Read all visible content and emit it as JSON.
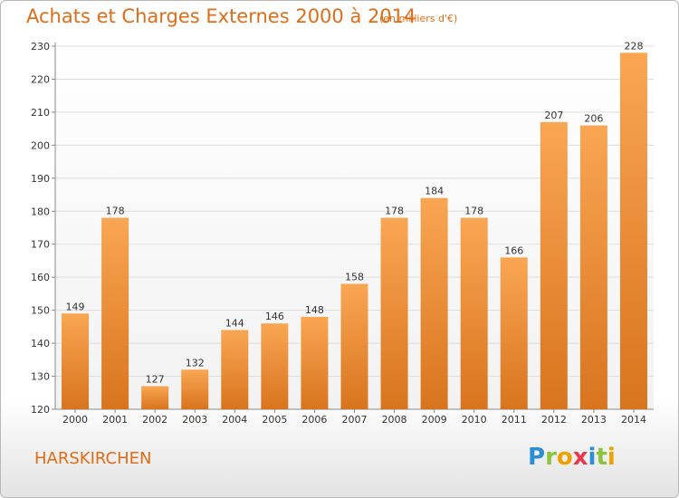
{
  "title": "Achats et Charges Externes 2000 à 2014",
  "subtitle": "(en milliers d'€)",
  "place": "HARSKIRCHEN",
  "logo": [
    "P",
    "r",
    "o",
    "x",
    "i",
    "t",
    "i"
  ],
  "colors": {
    "accent": "#e06c16",
    "bar_light": "#f9a653",
    "bar_dark": "#d9741e",
    "grid": "#dddddd"
  },
  "chart_data": {
    "type": "bar",
    "title": "Achats et Charges Externes 2000 à 2014",
    "subtitle": "(en milliers d'€)",
    "categories": [
      "2000",
      "2001",
      "2002",
      "2003",
      "2004",
      "2005",
      "2006",
      "2007",
      "2008",
      "2009",
      "2010",
      "2011",
      "2012",
      "2013",
      "2014"
    ],
    "values": [
      149,
      178,
      127,
      132,
      144,
      146,
      148,
      158,
      178,
      184,
      178,
      166,
      207,
      206,
      228
    ],
    "ylim": [
      120,
      230
    ],
    "yticks": [
      120,
      130,
      140,
      150,
      160,
      170,
      180,
      190,
      200,
      210,
      220,
      230
    ],
    "grid": true,
    "data_labels": true
  }
}
